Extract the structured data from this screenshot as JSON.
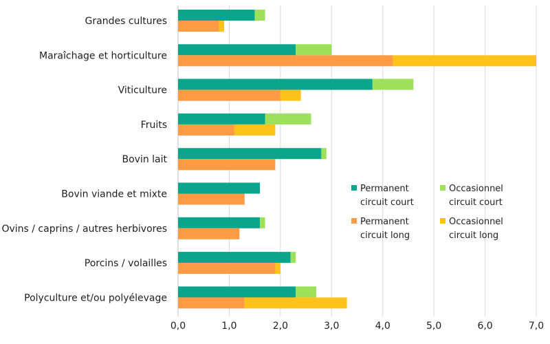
{
  "chart_data": {
    "type": "bar",
    "orientation": "horizontal",
    "stacked": true,
    "title": "",
    "xlabel": "",
    "ylabel": "",
    "xlim": [
      0,
      7
    ],
    "x_ticks": [
      "0,0",
      "1,0",
      "2,0",
      "3,0",
      "4,0",
      "5,0",
      "6,0",
      "7,0"
    ],
    "grid": true,
    "legend_position": "center-right",
    "categories": [
      "Grandes cultures",
      "Maraîchage et horticulture",
      "Viticulture",
      "Fruits",
      "Bovin lait",
      "Bovin viande et mixte",
      "Ovins / caprins / autres herbivores",
      "Porcins / volailles",
      "Polyculture et/ou polyélevage"
    ],
    "groups": [
      {
        "name": "circuit court",
        "series": [
          {
            "name": "Permanent circuit court",
            "legend_lines": [
              "Permanent",
              "circuit court"
            ],
            "color": "#0aa58a",
            "values": [
              1.5,
              2.3,
              3.8,
              1.7,
              2.8,
              1.6,
              1.6,
              2.2,
              2.3
            ]
          },
          {
            "name": "Occasionnel circuit court",
            "legend_lines": [
              "Occasionnel",
              "circuit court"
            ],
            "color": "#9de05a",
            "values": [
              0.2,
              0.7,
              0.8,
              0.9,
              0.1,
              0.0,
              0.1,
              0.1,
              0.4
            ]
          }
        ]
      },
      {
        "name": "circuit long",
        "series": [
          {
            "name": "Permanent circuit long",
            "legend_lines": [
              "Permanent",
              "circuit long"
            ],
            "color": "#ff9a45",
            "values": [
              0.8,
              4.2,
              2.0,
              1.1,
              1.9,
              1.3,
              1.2,
              1.9,
              1.3
            ]
          },
          {
            "name": "Occasionnel circuit long",
            "legend_lines": [
              "Occasionnel",
              "circuit long"
            ],
            "color": "#ffc21a",
            "values": [
              0.1,
              2.8,
              0.4,
              0.8,
              0.0,
              0.0,
              0.0,
              0.1,
              2.0
            ]
          }
        ]
      }
    ]
  }
}
